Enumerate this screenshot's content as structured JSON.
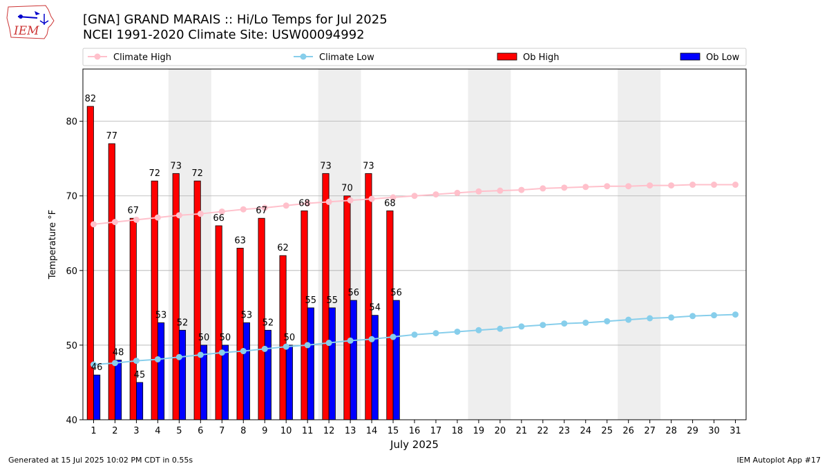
{
  "header": {
    "title_line1": "[GNA] GRAND MARAIS :: Hi/Lo Temps for Jul 2025",
    "title_line2": "NCEI 1991-2020 Climate Site: USW00094992"
  },
  "logo": {
    "text": "IEM",
    "icon": "iowa-state-outline-icon"
  },
  "footer": {
    "left": "Generated at 15 Jul 2025 10:02 PM CDT in 0.55s",
    "right": "IEM Autoplot App #17"
  },
  "colors": {
    "ob_high": "#ff0000",
    "ob_low": "#0000ff",
    "climate_high": "#ffc0cb",
    "climate_low": "#87ceeb",
    "weekend_shade": "#eeeeee",
    "grid": "#b0b0b0"
  },
  "chart_data": {
    "type": "bar",
    "xlabel": "July 2025",
    "ylabel": "Temperature °F",
    "ylim": [
      40,
      87
    ],
    "yticks": [
      40,
      50,
      60,
      70,
      80
    ],
    "grid": "horizontal",
    "legend_position": "top",
    "days": [
      1,
      2,
      3,
      4,
      5,
      6,
      7,
      8,
      9,
      10,
      11,
      12,
      13,
      14,
      15,
      16,
      17,
      18,
      19,
      20,
      21,
      22,
      23,
      24,
      25,
      26,
      27,
      28,
      29,
      30,
      31
    ],
    "weekend_shading": [
      [
        5,
        6
      ],
      [
        12,
        13
      ],
      [
        19,
        20
      ],
      [
        26,
        27
      ]
    ],
    "series": [
      {
        "name": "Climate High",
        "kind": "line",
        "values": [
          66.2,
          66.5,
          66.8,
          67.1,
          67.4,
          67.6,
          67.9,
          68.2,
          68.4,
          68.7,
          69.0,
          69.2,
          69.4,
          69.6,
          69.8,
          70.0,
          70.2,
          70.4,
          70.6,
          70.7,
          70.8,
          71.0,
          71.1,
          71.2,
          71.3,
          71.3,
          71.4,
          71.4,
          71.5,
          71.5,
          71.5
        ]
      },
      {
        "name": "Climate Low",
        "kind": "line",
        "values": [
          47.4,
          47.6,
          47.9,
          48.1,
          48.4,
          48.7,
          49.0,
          49.2,
          49.5,
          49.8,
          50.0,
          50.3,
          50.6,
          50.8,
          51.1,
          51.4,
          51.6,
          51.8,
          52.0,
          52.2,
          52.5,
          52.7,
          52.9,
          53.0,
          53.2,
          53.4,
          53.6,
          53.7,
          53.9,
          54.0,
          54.1
        ]
      },
      {
        "name": "Ob High",
        "kind": "bar",
        "values": [
          82,
          77,
          67,
          72,
          73,
          72,
          66,
          63,
          67,
          62,
          68,
          73,
          70,
          73,
          68
        ]
      },
      {
        "name": "Ob Low",
        "kind": "bar",
        "values": [
          46,
          48,
          45,
          53,
          52,
          50,
          50,
          53,
          52,
          50,
          55,
          55,
          56,
          54,
          56
        ]
      }
    ]
  }
}
